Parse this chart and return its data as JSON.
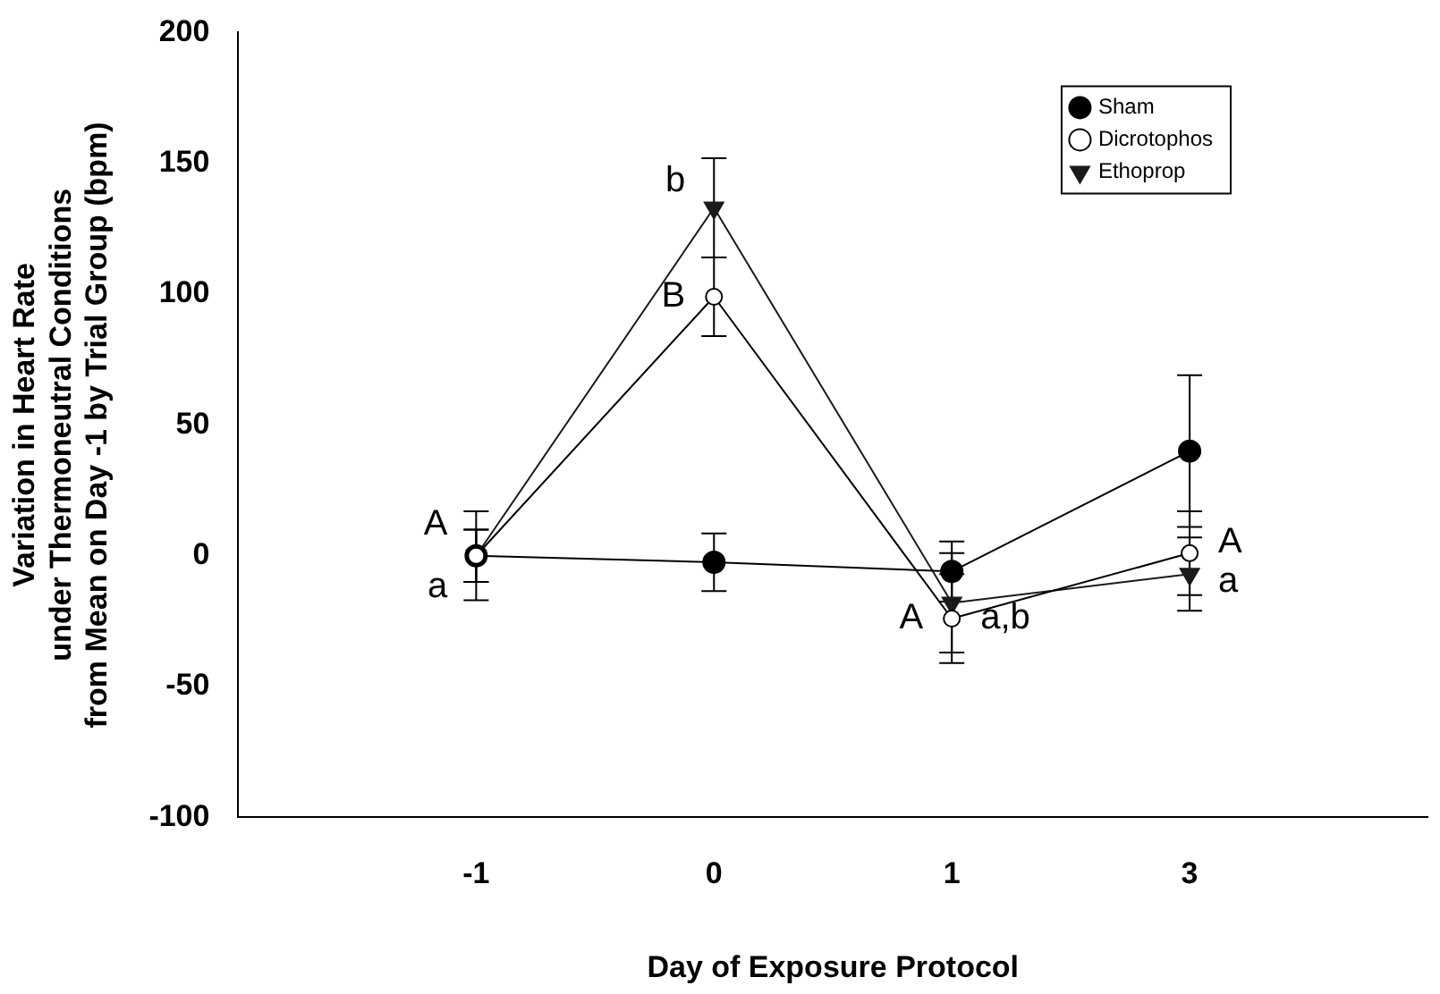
{
  "chart_data": {
    "type": "line",
    "xlabel": "Day of Exposure Protocol",
    "ylabel": "Variation in Heart Rate\nunder Thermoneutral Conditions\nfrom Mean on Day -1 by Trial Group (bpm)",
    "categories": [
      "-1",
      "0",
      "1",
      "3"
    ],
    "series": [
      {
        "name": "Sham",
        "color": "#000000",
        "marker": "circle",
        "values": [
          0,
          -2.5,
          -6,
          40
        ],
        "errors": [
          10,
          11,
          11.5,
          29
        ]
      },
      {
        "name": "Dicrotophos",
        "color": "#ffffff",
        "marker": "circle",
        "values": [
          0,
          99,
          -24,
          1
        ],
        "errors": [
          17,
          15,
          17,
          16
        ]
      },
      {
        "name": "Ethoprop",
        "color": "#1a1a1a",
        "marker": "triangle",
        "values": [
          0,
          133,
          -18,
          -7
        ],
        "errors": [
          10,
          19,
          19,
          14
        ]
      }
    ],
    "ylim": [
      -100,
      200
    ],
    "yticks": [
      -100,
      -50,
      0,
      50,
      100,
      150,
      200
    ],
    "legend": "top right",
    "grid": false,
    "line_style": "solid",
    "annotations": [
      {
        "text": "A",
        "x": "-1",
        "y": 12
      },
      {
        "text": "a",
        "x": "-1",
        "y": -12
      },
      {
        "text": "b",
        "x": "0",
        "y": 143
      },
      {
        "text": "B",
        "x": "0",
        "y": 99
      },
      {
        "text": "A",
        "x": "1",
        "y": -24
      },
      {
        "text": "a,b",
        "x": "1",
        "y": -24
      },
      {
        "text": "A",
        "x": "3",
        "y": 5
      },
      {
        "text": "a",
        "x": "3",
        "y": -10
      }
    ]
  }
}
